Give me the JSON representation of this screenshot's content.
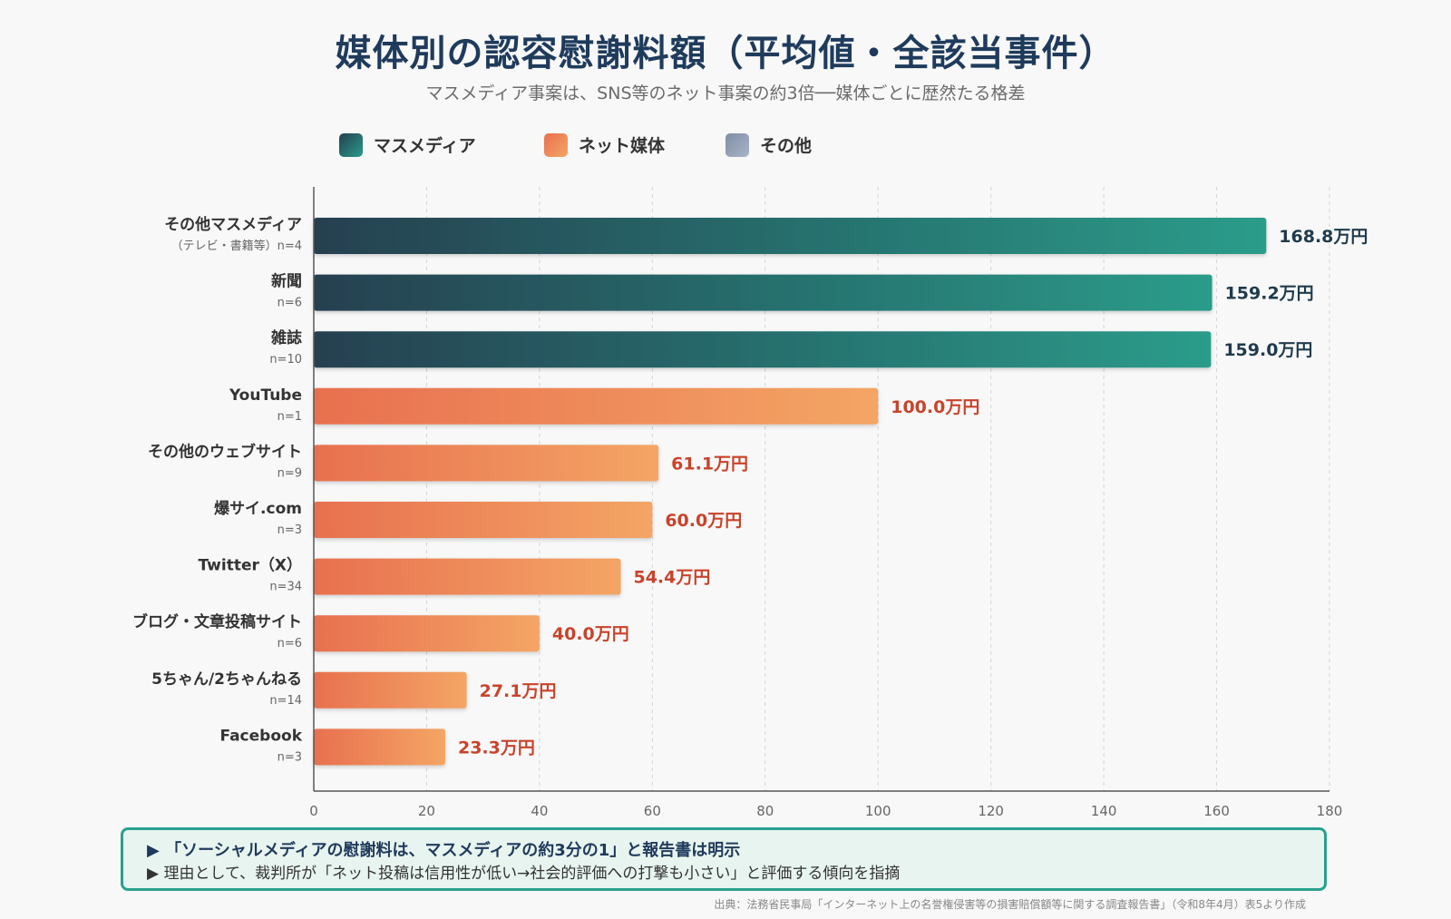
{
  "title": "媒体別の認容慰謝料額（平均値・全該当事件）",
  "subtitle": "マスメディア事案は、SNS等のネット事案の約3倍──媒体ごとに歴然たる格差",
  "legend": [
    {
      "label": "マスメディア",
      "group": "mass"
    },
    {
      "label": "ネット媒体",
      "group": "net"
    },
    {
      "label": "その他",
      "group": "other"
    }
  ],
  "colors": {
    "mass_start": "#254050",
    "mass_end": "#2a9c8a",
    "net_start": "#e8704f",
    "net_end": "#f4a565",
    "other_start": "#7f8ea5",
    "other_end": "#a9b4c7",
    "mass_label": "#1f3b4c",
    "net_label": "#c9432b",
    "grid": "#d5d5d5",
    "axis": "#555555",
    "tick": "#666666"
  },
  "chart_data": {
    "type": "bar",
    "orientation": "horizontal",
    "categories": [
      "その他マスメディア",
      "新聞",
      "雑誌",
      "YouTube",
      "その他のウェブサイト",
      "爆サイ.com",
      "Twitter（X）",
      "ブログ・文章投稿サイト",
      "5ちゃん/2ちゃんねる",
      "Facebook"
    ],
    "sublabels": [
      "（テレビ・書籍等）n=4",
      "n=6",
      "n=10",
      "n=1",
      "n=9",
      "n=3",
      "n=34",
      "n=6",
      "n=14",
      "n=3"
    ],
    "groups": [
      "mass",
      "mass",
      "mass",
      "net",
      "net",
      "net",
      "net",
      "net",
      "net",
      "net"
    ],
    "values": [
      168.8,
      159.2,
      159.0,
      100.0,
      61.1,
      60.0,
      54.4,
      40.0,
      27.1,
      23.3
    ],
    "value_labels": [
      "168.8万円",
      "159.2万円",
      "159.0万円",
      "100.0万円",
      "61.1万円",
      "60.0万円",
      "54.4万円",
      "40.0万円",
      "27.1万円",
      "23.3万円"
    ],
    "xlim": [
      0,
      180
    ],
    "xticks": [
      0,
      20,
      40,
      60,
      80,
      100,
      120,
      140,
      160,
      180
    ],
    "grid": true,
    "legend_position": "top-left"
  },
  "note": {
    "line1": "▶ 「ソーシャルメディアの慰謝料は、マスメディアの約3分の1」と報告書は明示",
    "line2": "▶ 理由として、裁判所が「ネット投稿は信用性が低い→社会的評価への打撃も小さい」と評価する傾向を指摘"
  },
  "source": "出典：法務省民事局「インターネット上の名誉権侵害等の損害賠償額等に関する調査報告書」（令和8年4月）表5より作成"
}
